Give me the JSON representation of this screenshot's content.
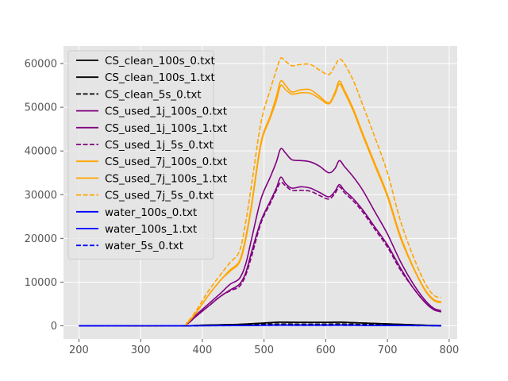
{
  "chart_data": {
    "type": "line",
    "title": "",
    "xlabel": "",
    "ylabel": "",
    "xlim": [
      175,
      813
    ],
    "ylim": [
      -3000,
      64000
    ],
    "grid": true,
    "style": "ggplot",
    "legend_placement": "upper-left",
    "x_ticks": [
      200,
      300,
      400,
      500,
      600,
      700,
      800
    ],
    "y_ticks": [
      0,
      10000,
      20000,
      30000,
      40000,
      50000,
      60000
    ],
    "x_tick_labels": [
      "200",
      "300",
      "400",
      "500",
      "600",
      "700",
      "800"
    ],
    "y_tick_labels": [
      "0",
      "10000",
      "20000",
      "30000",
      "40000",
      "50000",
      "60000"
    ],
    "series": [
      {
        "name": "CS_clean_100s_0.txt",
        "color": "#000000",
        "dash": "solid",
        "x": [
          200,
          360,
          400,
          460,
          500,
          525,
          560,
          600,
          622,
          650,
          700,
          760,
          787
        ],
        "y": [
          0,
          0,
          150,
          350,
          650,
          850,
          800,
          800,
          850,
          700,
          450,
          150,
          50
        ]
      },
      {
        "name": "CS_clean_100s_1.txt",
        "color": "#000000",
        "dash": "solid",
        "x": [
          200,
          360,
          400,
          460,
          500,
          525,
          560,
          600,
          622,
          650,
          700,
          760,
          787
        ],
        "y": [
          0,
          0,
          150,
          330,
          620,
          820,
          780,
          780,
          820,
          680,
          430,
          140,
          50
        ]
      },
      {
        "name": "CS_clean_5s_0.txt",
        "color": "#000000",
        "dash": "dashed",
        "x": [
          200,
          360,
          400,
          460,
          500,
          525,
          560,
          600,
          622,
          650,
          700,
          760,
          787
        ],
        "y": [
          0,
          0,
          100,
          200,
          350,
          420,
          400,
          400,
          430,
          350,
          220,
          80,
          30
        ]
      },
      {
        "name": "CS_used_1j_100s_0.txt",
        "color": "#800080",
        "dash": "solid",
        "x": [
          200,
          360,
          375,
          390,
          410,
          430,
          445,
          460,
          470,
          480,
          495,
          510,
          520,
          527,
          535,
          545,
          560,
          575,
          590,
          605,
          615,
          622,
          630,
          645,
          660,
          680,
          700,
          720,
          740,
          760,
          775,
          787
        ],
        "y": [
          0,
          0,
          500,
          2500,
          5000,
          7500,
          9500,
          10800,
          14000,
          20000,
          29000,
          34000,
          37500,
          40500,
          39500,
          38000,
          37800,
          37500,
          36500,
          35000,
          36000,
          37800,
          36500,
          34000,
          31000,
          26000,
          21000,
          15000,
          10000,
          6000,
          4000,
          3500
        ]
      },
      {
        "name": "CS_used_1j_100s_1.txt",
        "color": "#800080",
        "dash": "solid",
        "x": [
          200,
          360,
          375,
          390,
          410,
          430,
          445,
          460,
          470,
          480,
          495,
          510,
          520,
          527,
          535,
          545,
          560,
          575,
          590,
          605,
          615,
          622,
          630,
          645,
          660,
          680,
          700,
          720,
          740,
          760,
          775,
          787
        ],
        "y": [
          0,
          0,
          400,
          2200,
          4500,
          6800,
          8200,
          9500,
          12000,
          17000,
          24000,
          28500,
          31500,
          34000,
          32500,
          31500,
          31800,
          31500,
          30500,
          29500,
          30800,
          32300,
          31000,
          29000,
          26500,
          22500,
          18500,
          13500,
          9000,
          5500,
          3700,
          3200
        ]
      },
      {
        "name": "CS_used_1j_5s_0.txt",
        "color": "#800080",
        "dash": "dashed",
        "x": [
          200,
          360,
          375,
          390,
          410,
          430,
          445,
          460,
          470,
          480,
          495,
          510,
          520,
          527,
          535,
          545,
          560,
          575,
          590,
          605,
          615,
          622,
          630,
          645,
          660,
          680,
          700,
          720,
          740,
          760,
          775,
          787
        ],
        "y": [
          0,
          0,
          400,
          2200,
          4500,
          6800,
          8000,
          9000,
          11500,
          16000,
          23500,
          28000,
          31000,
          32800,
          32000,
          31000,
          31000,
          30800,
          29800,
          29000,
          30300,
          31800,
          30500,
          28500,
          26000,
          22000,
          18000,
          13000,
          9000,
          5500,
          3700,
          3200
        ]
      },
      {
        "name": "CS_used_7j_100s_0.txt",
        "color": "#ffa500",
        "dash": "solid",
        "x": [
          200,
          360,
          375,
          390,
          410,
          430,
          445,
          460,
          470,
          480,
          495,
          510,
          520,
          527,
          535,
          545,
          560,
          575,
          590,
          605,
          615,
          622,
          630,
          645,
          660,
          680,
          700,
          720,
          740,
          760,
          775,
          787
        ],
        "y": [
          0,
          0,
          600,
          3000,
          7000,
          10500,
          12800,
          14800,
          20000,
          28000,
          42000,
          48000,
          52500,
          56000,
          55000,
          53500,
          54000,
          54000,
          52500,
          51000,
          53500,
          56000,
          54000,
          49500,
          44000,
          37000,
          30000,
          21000,
          14000,
          8500,
          6000,
          5500
        ]
      },
      {
        "name": "CS_used_7j_100s_1.txt",
        "color": "#ffa500",
        "dash": "solid",
        "x": [
          200,
          360,
          375,
          390,
          410,
          430,
          445,
          460,
          470,
          480,
          495,
          510,
          520,
          527,
          535,
          545,
          560,
          575,
          590,
          605,
          615,
          622,
          630,
          645,
          660,
          680,
          700,
          720,
          740,
          760,
          775,
          787
        ],
        "y": [
          0,
          0,
          600,
          3000,
          7000,
          10500,
          12500,
          14500,
          19500,
          27500,
          41500,
          47500,
          51500,
          55000,
          54000,
          53000,
          53300,
          53200,
          52000,
          50800,
          53000,
          55300,
          53500,
          49000,
          43500,
          36500,
          29500,
          20500,
          13800,
          8300,
          5800,
          5300
        ]
      },
      {
        "name": "CS_used_7j_5s_0.txt",
        "color": "#ffa500",
        "dash": "dashed",
        "x": [
          200,
          360,
          375,
          390,
          410,
          430,
          445,
          460,
          470,
          480,
          495,
          510,
          520,
          527,
          535,
          545,
          560,
          575,
          590,
          605,
          615,
          622,
          630,
          645,
          660,
          680,
          700,
          720,
          740,
          760,
          775,
          787
        ],
        "y": [
          0,
          0,
          800,
          3500,
          8000,
          11800,
          14500,
          17000,
          23500,
          32500,
          46500,
          54000,
          58500,
          61200,
          60500,
          59500,
          59800,
          59800,
          58500,
          57500,
          59500,
          61000,
          60000,
          56000,
          50500,
          43000,
          35000,
          24500,
          16500,
          10000,
          7000,
          6500
        ]
      },
      {
        "name": "water_100s_0.txt",
        "color": "#0000ff",
        "dash": "solid",
        "x": [
          200,
          360,
          400,
          460,
          500,
          525,
          560,
          600,
          622,
          650,
          700,
          760,
          787
        ],
        "y": [
          0,
          0,
          30,
          80,
          150,
          180,
          170,
          170,
          180,
          150,
          100,
          40,
          10
        ]
      },
      {
        "name": "water_100s_1.txt",
        "color": "#0000ff",
        "dash": "solid",
        "x": [
          200,
          360,
          400,
          460,
          500,
          525,
          560,
          600,
          622,
          650,
          700,
          760,
          787
        ],
        "y": [
          0,
          0,
          30,
          75,
          140,
          170,
          160,
          160,
          170,
          140,
          95,
          40,
          10
        ]
      },
      {
        "name": "water_5s_0.txt",
        "color": "#0000ff",
        "dash": "dashed",
        "x": [
          200,
          360,
          400,
          460,
          500,
          525,
          560,
          600,
          622,
          650,
          700,
          760,
          787
        ],
        "y": [
          0,
          0,
          20,
          50,
          90,
          110,
          100,
          100,
          110,
          90,
          60,
          25,
          5
        ]
      }
    ]
  }
}
